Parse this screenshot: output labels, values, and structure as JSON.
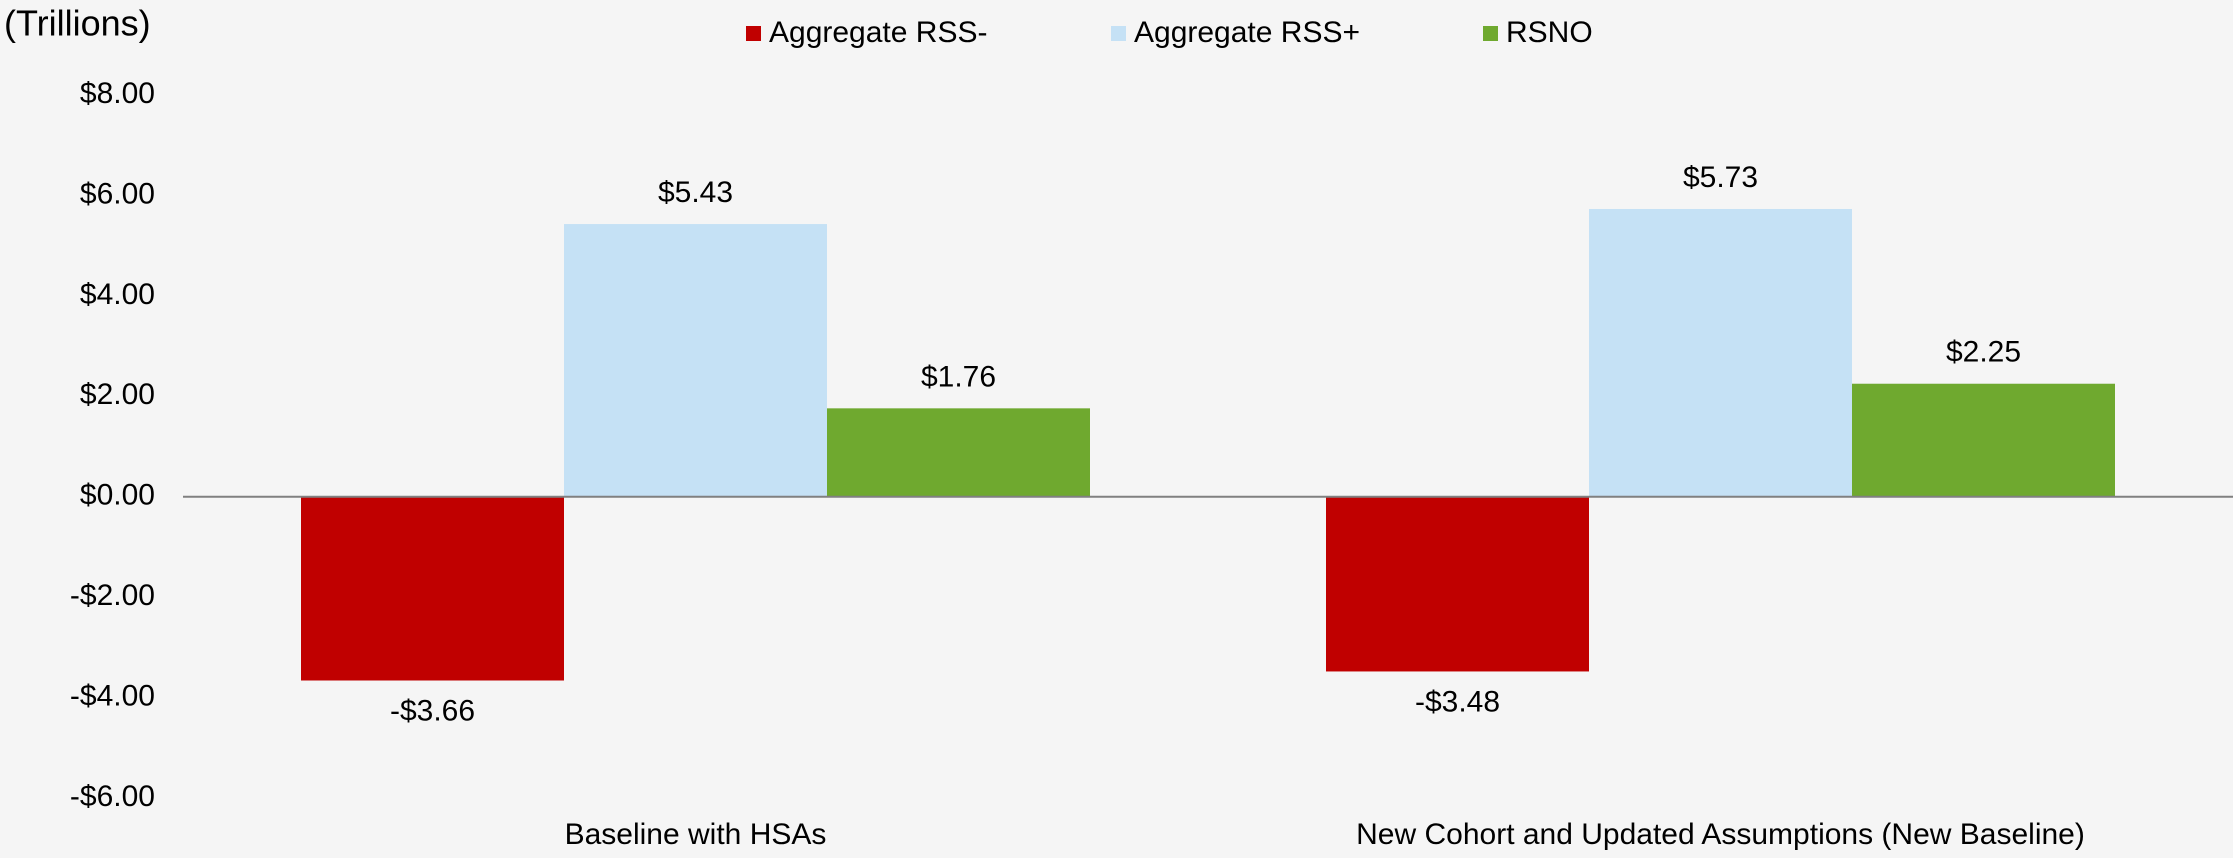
{
  "chart_data": {
    "type": "bar",
    "title": "(Trillions)",
    "categories": [
      "Baseline with HSAs",
      "New Cohort and Updated Assumptions (New Baseline)"
    ],
    "series": [
      {
        "name": "Aggregate RSS-",
        "color": "#c00000",
        "values": [
          -3.66,
          -3.48
        ],
        "value_labels": [
          "-$3.66",
          "-$3.48"
        ]
      },
      {
        "name": "Aggregate RSS+",
        "color": "#c5e1f5",
        "values": [
          5.43,
          5.73
        ],
        "value_labels": [
          "$5.43",
          "$5.73"
        ]
      },
      {
        "name": "RSNO",
        "color": "#6fa92f",
        "values": [
          1.76,
          2.25
        ],
        "value_labels": [
          "$1.76",
          "$2.25"
        ]
      }
    ],
    "ylim": [
      -6,
      8
    ],
    "yticks": [
      {
        "value": -6,
        "label": "-$6.00"
      },
      {
        "value": -4,
        "label": "-$4.00"
      },
      {
        "value": -2,
        "label": "-$2.00"
      },
      {
        "value": 0,
        "label": "$0.00"
      },
      {
        "value": 2,
        "label": "$2.00"
      },
      {
        "value": 4,
        "label": "$4.00"
      },
      {
        "value": 6,
        "label": "$6.00"
      },
      {
        "value": 8,
        "label": "$8.00"
      }
    ],
    "grid": false,
    "legend": "top"
  }
}
